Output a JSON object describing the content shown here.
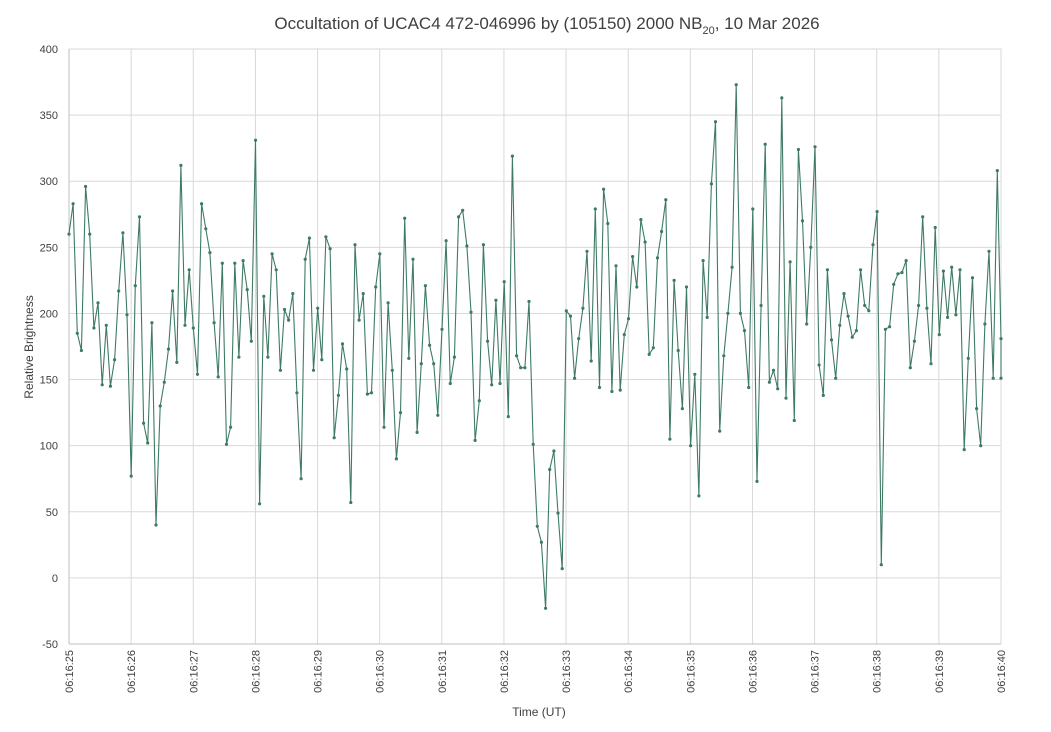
{
  "chart_data": {
    "type": "line",
    "title": "Occultation of UCAC4 472-046996 by (105150) 2000 NB",
    "title_subscript": "20",
    "title_suffix": ", 10 Mar 2026",
    "xlabel": "Time (UT)",
    "ylabel": "Relative Brightness",
    "ylim": [
      -50,
      400
    ],
    "yticks": [
      -50,
      0,
      50,
      100,
      150,
      200,
      250,
      300,
      350,
      400
    ],
    "xlim": [
      25,
      40
    ],
    "xticks": [
      {
        "t": 25,
        "label": "06:16:25"
      },
      {
        "t": 26,
        "label": "06:16:26"
      },
      {
        "t": 27,
        "label": "06:16:27"
      },
      {
        "t": 28,
        "label": "06:16:28"
      },
      {
        "t": 29,
        "label": "06:16:29"
      },
      {
        "t": 30,
        "label": "06:16:30"
      },
      {
        "t": 31,
        "label": "06:16:31"
      },
      {
        "t": 32,
        "label": "06:16:32"
      },
      {
        "t": 33,
        "label": "06:16:33"
      },
      {
        "t": 34,
        "label": "06:16:34"
      },
      {
        "t": 35,
        "label": "06:16:35"
      },
      {
        "t": 36,
        "label": "06:16:36"
      },
      {
        "t": 37,
        "label": "06:16:37"
      },
      {
        "t": 38,
        "label": "06:16:38"
      },
      {
        "t": 39,
        "label": "06:16:39"
      },
      {
        "t": 40,
        "label": "06:16:40"
      }
    ],
    "grid": true,
    "series_color": "#3e7b63",
    "series": [
      {
        "x_start": 25.0,
        "x_step": 0.0667,
        "values": [
          260,
          283,
          185,
          172,
          296,
          260,
          189,
          208,
          146,
          191,
          145,
          165,
          217,
          261,
          199,
          77,
          221,
          273,
          117,
          102,
          193,
          40,
          130,
          148,
          173,
          217,
          163,
          312,
          191,
          233,
          189,
          154,
          283,
          264,
          246,
          193,
          152,
          238,
          101,
          114,
          238,
          167,
          240,
          218,
          179,
          331,
          56,
          213,
          167,
          245,
          233,
          157,
          203,
          195,
          215,
          140,
          75,
          241,
          257,
          157,
          204,
          165,
          258,
          249,
          106,
          138,
          177,
          158,
          57,
          252,
          195,
          215,
          139,
          140,
          220,
          245,
          114,
          208,
          157,
          90,
          125,
          272,
          166,
          241,
          110,
          162,
          221,
          176,
          162,
          123,
          188,
          255,
          147,
          167,
          273,
          278,
          251,
          201,
          104,
          134,
          252,
          179,
          146,
          210,
          147,
          224,
          122,
          319,
          168,
          159,
          159,
          209,
          101,
          39,
          27,
          -23,
          82,
          96,
          49,
          7,
          202,
          198,
          151,
          181,
          204,
          247,
          164,
          279,
          144,
          294,
          268,
          141,
          236,
          142,
          184,
          196,
          243,
          220,
          271,
          254,
          169,
          174,
          242,
          262,
          286,
          105,
          225,
          172,
          128,
          220,
          100,
          154,
          62,
          240,
          197,
          298,
          345,
          111,
          168,
          200,
          235,
          373,
          200,
          187,
          144,
          279,
          73,
          206,
          328,
          148,
          157,
          143,
          363,
          136,
          239,
          119,
          324,
          270,
          192,
          250,
          326,
          161,
          138,
          233,
          180,
          151,
          191,
          215,
          198,
          182,
          187,
          233,
          206,
          202,
          252,
          277,
          10,
          188,
          190,
          222,
          230,
          231,
          240,
          159,
          179,
          206,
          273,
          204,
          162,
          265,
          184,
          232,
          197,
          235,
          199,
          233,
          97,
          166,
          227,
          128,
          100,
          192,
          247,
          151,
          308,
          181,
          151
        ]
      }
    ]
  }
}
